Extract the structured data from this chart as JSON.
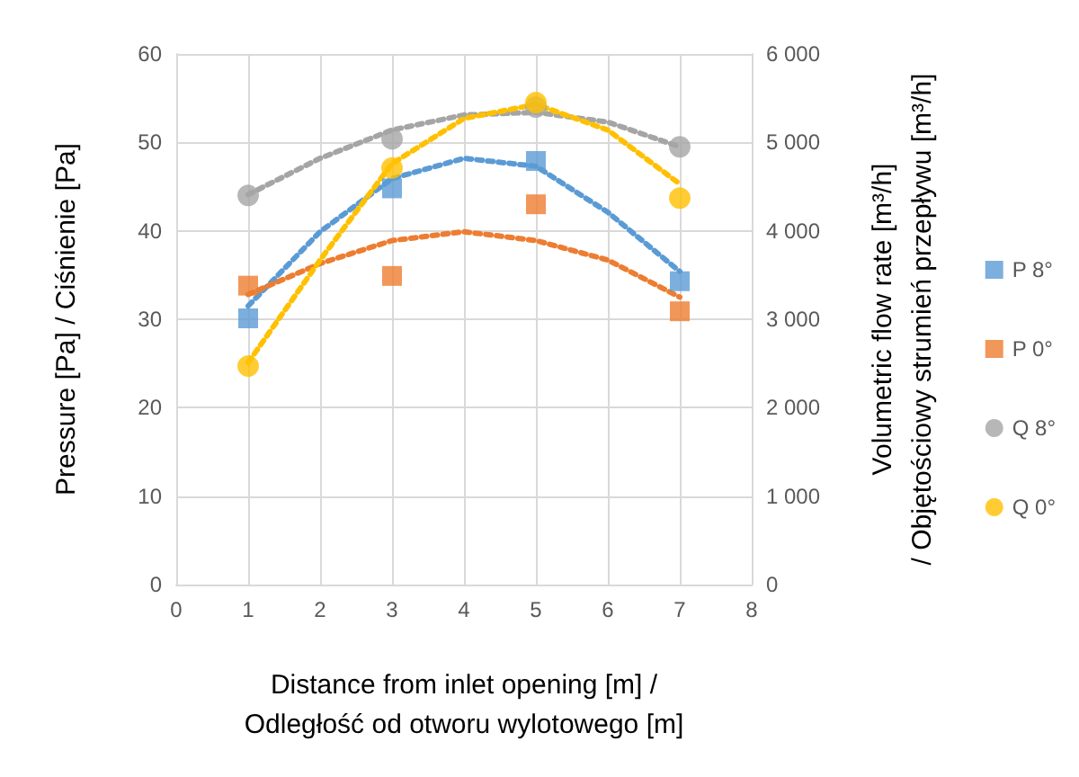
{
  "chart_data": {
    "type": "scatter",
    "xlabel": "Distance from inlet opening [m] /\nOdległość od otworu wylotowego [m]",
    "ylabel": "Pressure [Pa] / Ciśnienie [Pa]",
    "y2label": "Volumetric flow rate [m³/h]\n/ Objętościowy strumień przepływu [m³/h]",
    "xlim": [
      0,
      8
    ],
    "xticks": [
      0,
      1,
      2,
      3,
      4,
      5,
      6,
      7,
      8
    ],
    "ylim": [
      0,
      60
    ],
    "yticks": [
      0,
      10,
      20,
      30,
      40,
      50,
      60
    ],
    "y2lim": [
      0,
      6000
    ],
    "y2ticks": [
      0,
      {
        "value": 1000,
        "label": "1 000"
      },
      {
        "value": 2000,
        "label": "2 000"
      },
      {
        "value": 3000,
        "label": "3 000"
      },
      {
        "value": 4000,
        "label": "4 000"
      },
      {
        "value": 5000,
        "label": "5 000"
      },
      {
        "value": 6000,
        "label": "6 000"
      }
    ],
    "grid": true,
    "legend": "right",
    "series": [
      {
        "type": "line",
        "line_style": "dotted",
        "marker": "none",
        "color": "#5b9bd5",
        "x": [
          1,
          2,
          3,
          4,
          5,
          6,
          7
        ],
        "values": [
          31.5,
          39.9,
          45.9,
          48.2,
          47.3,
          42.1,
          35.4
        ]
      },
      {
        "type": "line",
        "line_style": "dotted",
        "marker": "none",
        "color": "#ed7d31",
        "x": [
          1,
          2,
          3,
          4,
          5,
          6,
          7
        ],
        "values": [
          32.8,
          36.3,
          38.9,
          39.9,
          38.9,
          36.7,
          32.5
        ]
      },
      {
        "type": "line",
        "line_style": "dotted",
        "marker": "none",
        "color": "#a5a5a5",
        "axis": "y2",
        "x": [
          1,
          2,
          3,
          4,
          5,
          6,
          7
        ],
        "values": [
          4410,
          4820,
          5140,
          5310,
          5340,
          5230,
          4950
        ]
      },
      {
        "type": "line",
        "line_style": "dotted",
        "marker": "none",
        "color": "#ffc000",
        "axis": "y2",
        "x": [
          1,
          2,
          3,
          4,
          5,
          6,
          7
        ],
        "values": [
          2510,
          3670,
          4760,
          5270,
          5430,
          5140,
          4530
        ]
      },
      {
        "name": "P 8°",
        "marker": "square",
        "color": "#5b9bd5",
        "x": [
          1,
          3,
          5,
          7
        ],
        "values": [
          30.1,
          44.8,
          47.9,
          34.3
        ]
      },
      {
        "name": "P 0°",
        "marker": "square",
        "color": "#ed7d31",
        "x": [
          1,
          3,
          5,
          7
        ],
        "values": [
          33.8,
          34.9,
          43.0,
          30.9
        ]
      },
      {
        "name": "Q 8°",
        "marker": "circle",
        "color": "#a5a5a5",
        "axis": "y2",
        "x": [
          1,
          3,
          5,
          7
        ],
        "values": [
          4400,
          5040,
          5400,
          4950
        ]
      },
      {
        "name": "Q 0°",
        "marker": "circle",
        "color": "#ffc000",
        "axis": "y2",
        "x": [
          1,
          3,
          5,
          7
        ],
        "values": [
          2470,
          4710,
          5450,
          4370
        ]
      }
    ]
  }
}
